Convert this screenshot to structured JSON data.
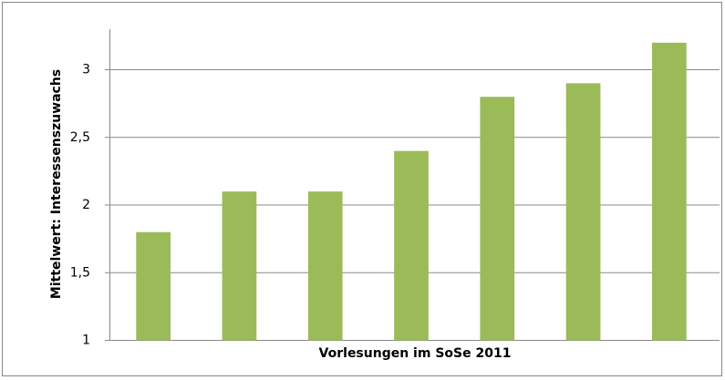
{
  "chart_data": {
    "type": "bar",
    "categories": [
      null,
      null,
      null,
      null,
      null,
      null,
      null
    ],
    "values": [
      1.8,
      2.1,
      2.1,
      2.4,
      2.8,
      2.9,
      3.2
    ],
    "color": "#9bbb59",
    "ylim": [
      1,
      3.3
    ],
    "yticks": [
      1,
      {
        "value": 1.5,
        "label": "1,5"
      },
      2,
      {
        "value": 2.5,
        "label": "2,5"
      },
      3
    ],
    "grid": true,
    "xlabel": "Vorlesungen im SoSe 2011",
    "ylabel": "Mittelwert: Interessenszuwachs"
  }
}
